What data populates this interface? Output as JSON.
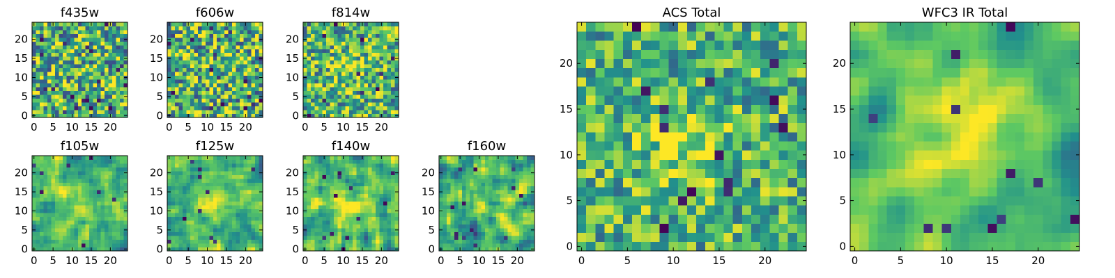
{
  "figure_title": "",
  "colormap": "viridis",
  "colormap_anchors": [
    "#440154",
    "#3b528b",
    "#21918c",
    "#5ec962",
    "#fde725"
  ],
  "chart_data": [
    {
      "type": "heatmap",
      "title": "f435w",
      "grid": [
        25,
        25
      ],
      "xlim": [
        0,
        24
      ],
      "ylim": [
        0,
        24
      ],
      "xticks": [
        "0",
        "5",
        "10",
        "15",
        "20"
      ],
      "yticks": [
        "0",
        "5",
        "10",
        "15",
        "20"
      ],
      "seed": 11,
      "smooth": 0,
      "noise": 0.95,
      "blob_center": [
        12,
        12
      ],
      "blob_strength": 0.05,
      "dark_spots": 22
    },
    {
      "type": "heatmap",
      "title": "f606w",
      "grid": [
        25,
        25
      ],
      "xlim": [
        0,
        24
      ],
      "ylim": [
        0,
        24
      ],
      "xticks": [
        "0",
        "5",
        "10",
        "15",
        "20"
      ],
      "yticks": [
        "0",
        "5",
        "10",
        "15",
        "20"
      ],
      "seed": 23,
      "smooth": 0,
      "noise": 0.95,
      "blob_center": [
        12,
        12
      ],
      "blob_strength": 0.05,
      "dark_spots": 18
    },
    {
      "type": "heatmap",
      "title": "f814w",
      "grid": [
        25,
        25
      ],
      "xlim": [
        0,
        24
      ],
      "ylim": [
        0,
        24
      ],
      "xticks": [
        "0",
        "5",
        "10",
        "15",
        "20"
      ],
      "yticks": [
        "0",
        "5",
        "10",
        "15",
        "20"
      ],
      "seed": 37,
      "smooth": 0,
      "noise": 0.85,
      "blob_center": [
        11,
        12
      ],
      "blob_strength": 0.35,
      "dark_spots": 10
    },
    {
      "type": "heatmap",
      "title": "f105w",
      "grid": [
        25,
        25
      ],
      "xlim": [
        0,
        24
      ],
      "ylim": [
        0,
        24
      ],
      "xticks": [
        "0",
        "5",
        "10",
        "15",
        "20"
      ],
      "yticks": [
        "0",
        "5",
        "10",
        "15",
        "20"
      ],
      "seed": 41,
      "smooth": 1,
      "noise": 0.8,
      "blob_center": [
        13,
        11
      ],
      "blob_strength": 0.45,
      "dark_spots": 8
    },
    {
      "type": "heatmap",
      "title": "f125w",
      "grid": [
        25,
        25
      ],
      "xlim": [
        0,
        24
      ],
      "ylim": [
        0,
        24
      ],
      "xticks": [
        "0",
        "5",
        "10",
        "15",
        "20"
      ],
      "yticks": [
        "0",
        "5",
        "10",
        "15",
        "20"
      ],
      "seed": 53,
      "smooth": 1,
      "noise": 0.8,
      "blob_center": [
        12,
        12
      ],
      "blob_strength": 0.45,
      "dark_spots": 10
    },
    {
      "type": "heatmap",
      "title": "f140w",
      "grid": [
        25,
        25
      ],
      "xlim": [
        0,
        24
      ],
      "ylim": [
        0,
        24
      ],
      "xticks": [
        "0",
        "5",
        "10",
        "15",
        "20"
      ],
      "yticks": [
        "0",
        "5",
        "10",
        "15",
        "20"
      ],
      "seed": 67,
      "smooth": 1,
      "noise": 0.85,
      "blob_center": [
        12,
        11
      ],
      "blob_strength": 0.35,
      "dark_spots": 12
    },
    {
      "type": "heatmap",
      "title": "f160w",
      "grid": [
        25,
        25
      ],
      "xlim": [
        0,
        24
      ],
      "ylim": [
        0,
        24
      ],
      "xticks": [
        "0",
        "5",
        "10",
        "15",
        "20"
      ],
      "yticks": [
        "0",
        "5",
        "10",
        "15",
        "20"
      ],
      "seed": 79,
      "smooth": 1,
      "noise": 0.85,
      "blob_center": [
        12,
        12
      ],
      "blob_strength": 0.3,
      "dark_spots": 14
    },
    {
      "type": "heatmap",
      "title": "ACS Total",
      "grid": [
        25,
        25
      ],
      "xlim": [
        0,
        24
      ],
      "ylim": [
        0,
        24
      ],
      "xticks": [
        "0",
        "5",
        "10",
        "15",
        "20"
      ],
      "yticks": [
        "0",
        "5",
        "10",
        "15",
        "20"
      ],
      "seed": 97,
      "smooth": 0,
      "noise": 0.7,
      "blob_center": [
        11,
        11
      ],
      "blob_strength": 0.45,
      "dark_spots": 14
    },
    {
      "type": "heatmap",
      "title": "WFC3 IR Total",
      "grid": [
        25,
        25
      ],
      "xlim": [
        0,
        24
      ],
      "ylim": [
        0,
        24
      ],
      "xticks": [
        "0",
        "5",
        "10",
        "15",
        "20"
      ],
      "yticks": [
        "0",
        "5",
        "10",
        "15",
        "20"
      ],
      "seed": 113,
      "smooth": 2,
      "noise": 0.6,
      "blob_center": [
        12,
        12
      ],
      "blob_strength": 0.7,
      "dark_spots": 12
    }
  ]
}
